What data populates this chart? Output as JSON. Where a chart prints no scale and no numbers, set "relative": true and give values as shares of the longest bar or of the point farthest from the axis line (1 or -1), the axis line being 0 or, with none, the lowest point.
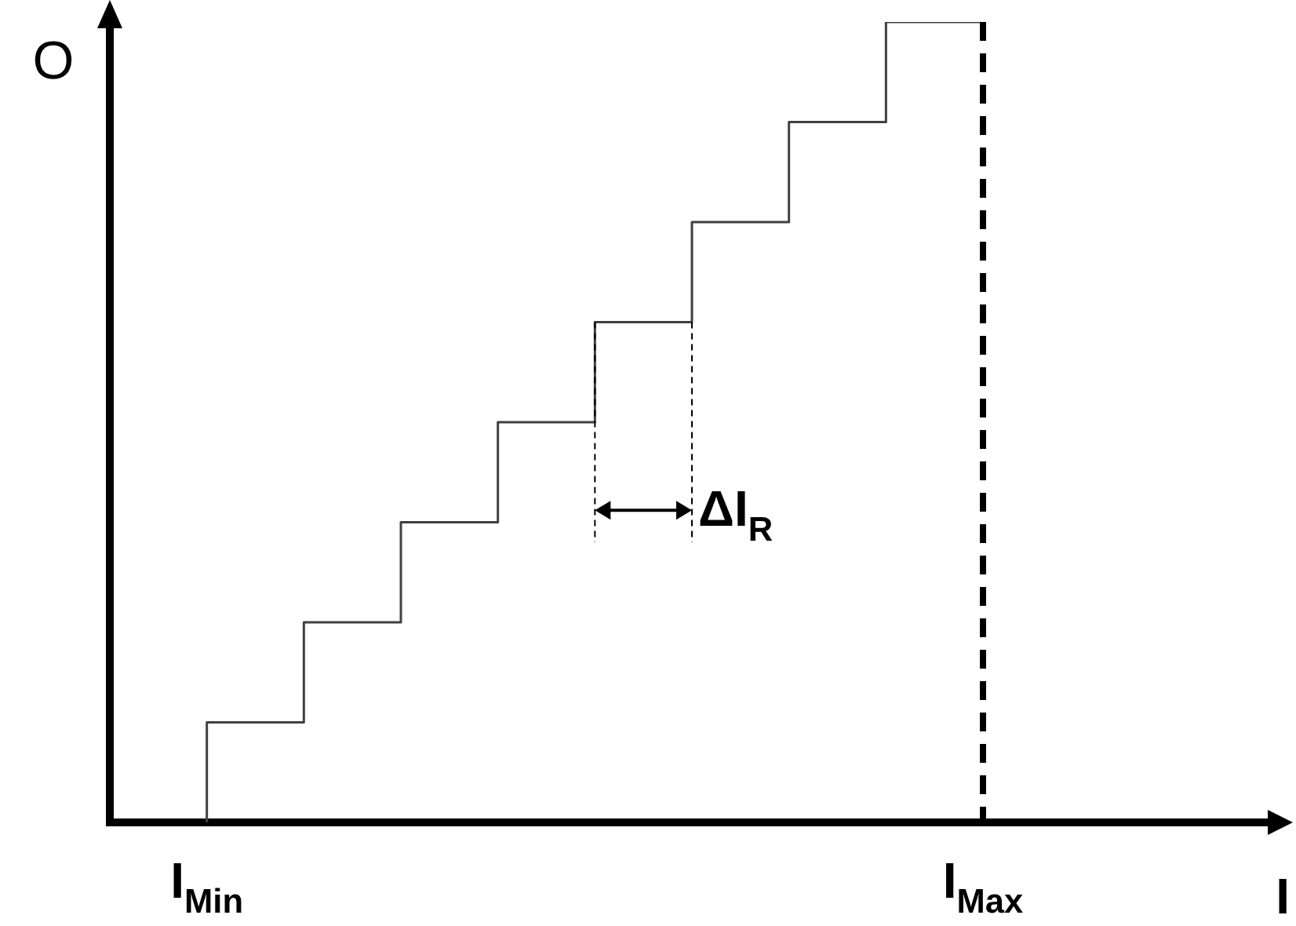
{
  "chart_data": {
    "type": "step",
    "relative": true,
    "xlabel": "I",
    "ylabel": "O",
    "categories": [
      null,
      "I$_{Min}$",
      null,
      null,
      null,
      null,
      null,
      null,
      null,
      "I$_{Max}$",
      null,
      null,
      null
    ],
    "values": [
      null,
      0,
      0.125,
      0.25,
      0.375,
      0.5,
      0.625,
      0.75,
      0.875,
      1,
      null,
      null,
      null
    ],
    "color": "#404040",
    "marker": "none",
    "line_style": "solid",
    "tick_labels": "x",
    "ref_lines": [
      {
        "axis": "x",
        "value": "I$_{Max}$",
        "line_style": "dashed",
        "color": "#000000"
      }
    ],
    "annotations": [
      "ΔI$_{R}$"
    ]
  }
}
